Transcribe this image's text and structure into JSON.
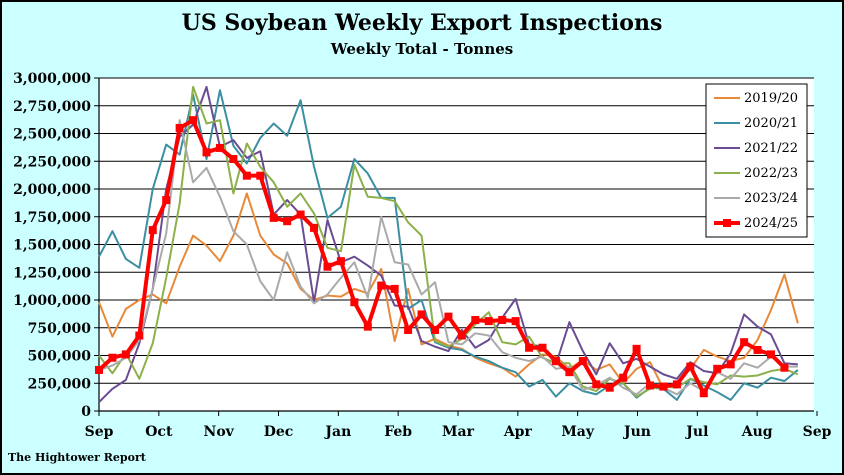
{
  "header": {
    "title": "US Soybean Weekly Export Inspections",
    "subtitle": "Weekly Total - Tonnes"
  },
  "footer": {
    "source": "The Hightower Report"
  },
  "chart_data": {
    "type": "line",
    "title": "US Soybean Weekly Export Inspections",
    "subtitle": "Weekly Total - Tonnes",
    "xlabel": "",
    "ylabel": "",
    "ylim": [
      0,
      3000000
    ],
    "y_ticks": [
      0,
      250000,
      500000,
      750000,
      1000000,
      1250000,
      1500000,
      1750000,
      2000000,
      2250000,
      2500000,
      2750000,
      3000000
    ],
    "y_tick_labels": [
      "0",
      "250,000",
      "500,000",
      "750,000",
      "1,000,000",
      "1,250,000",
      "1,500,000",
      "1,750,000",
      "2,000,000",
      "2,250,000",
      "2,500,000",
      "2,750,000",
      "3,000,000"
    ],
    "x_tick_labels": [
      "Sep",
      "Oct",
      "Nov",
      "Dec",
      "Jan",
      "Feb",
      "Mar",
      "Apr",
      "May",
      "Jun",
      "Jul",
      "Aug",
      "Sep"
    ],
    "x_unit": "week number from start of marketing year (September)",
    "xlim": [
      0,
      53.2
    ],
    "grid": true,
    "legend_position": "top-right",
    "series": [
      {
        "name": "2019/20",
        "color": "#e8893a",
        "x": [
          0,
          1,
          2,
          3,
          4,
          5,
          6,
          7,
          8,
          9,
          10,
          11,
          12,
          13,
          14,
          15,
          16,
          17,
          18,
          19,
          20,
          21,
          22,
          23,
          24,
          25,
          26,
          27,
          28,
          29,
          30,
          31,
          32,
          33,
          34,
          35,
          36,
          37,
          38,
          39,
          40,
          41,
          42,
          43,
          44,
          45,
          46,
          47,
          48,
          49,
          50,
          51,
          52
        ],
        "values": [
          980000,
          670000,
          920000,
          1000000,
          1050000,
          970000,
          1300000,
          1580000,
          1490000,
          1350000,
          1580000,
          1960000,
          1580000,
          1410000,
          1330000,
          1100000,
          1000000,
          1040000,
          1030000,
          1100000,
          1060000,
          1280000,
          630000,
          1100000,
          600000,
          650000,
          590000,
          560000,
          480000,
          430000,
          390000,
          310000,
          420000,
          510000,
          490000,
          380000,
          460000,
          370000,
          420000,
          250000,
          380000,
          440000,
          200000,
          250000,
          380000,
          550000,
          490000,
          450000,
          480000,
          640000,
          910000,
          1230000,
          790000
        ]
      },
      {
        "name": "2020/21",
        "color": "#3a8fa3",
        "x": [
          0,
          1,
          2,
          3,
          4,
          5,
          6,
          7,
          8,
          9,
          10,
          11,
          12,
          13,
          14,
          15,
          16,
          17,
          18,
          19,
          20,
          21,
          22,
          23,
          24,
          25,
          26,
          27,
          28,
          29,
          30,
          31,
          32,
          33,
          34,
          35,
          36,
          37,
          38,
          39,
          40,
          41,
          42,
          43,
          44,
          45,
          46,
          47,
          48,
          49,
          50,
          51,
          52
        ],
        "values": [
          1390000,
          1620000,
          1370000,
          1290000,
          2000000,
          2400000,
          2310000,
          2850000,
          2270000,
          2890000,
          2390000,
          2230000,
          2460000,
          2590000,
          2480000,
          2800000,
          2200000,
          1740000,
          1840000,
          2270000,
          2140000,
          1920000,
          1920000,
          920000,
          1000000,
          620000,
          570000,
          550000,
          490000,
          450000,
          390000,
          350000,
          220000,
          280000,
          130000,
          250000,
          180000,
          150000,
          230000,
          250000,
          120000,
          210000,
          200000,
          100000,
          290000,
          230000,
          170000,
          100000,
          250000,
          210000,
          300000,
          270000,
          370000
        ]
      },
      {
        "name": "2021/22",
        "color": "#6a4c93",
        "x": [
          0,
          1,
          2,
          3,
          4,
          5,
          6,
          7,
          8,
          9,
          10,
          11,
          12,
          13,
          14,
          15,
          16,
          17,
          18,
          19,
          20,
          21,
          22,
          23,
          24,
          25,
          26,
          27,
          28,
          29,
          30,
          31,
          32,
          33,
          34,
          35,
          36,
          37,
          38,
          39,
          40,
          41,
          42,
          43,
          44,
          45,
          46,
          47,
          48,
          49,
          50,
          51,
          52
        ],
        "values": [
          80000,
          200000,
          280000,
          610000,
          1100000,
          2000000,
          2470000,
          2580000,
          2920000,
          2380000,
          2440000,
          2280000,
          2340000,
          1770000,
          1900000,
          1770000,
          980000,
          1720000,
          1340000,
          1390000,
          1310000,
          1220000,
          950000,
          940000,
          630000,
          580000,
          540000,
          730000,
          570000,
          640000,
          840000,
          1010000,
          600000,
          580000,
          420000,
          800000,
          540000,
          330000,
          610000,
          430000,
          470000,
          400000,
          330000,
          290000,
          440000,
          360000,
          340000,
          520000,
          870000,
          760000,
          690000,
          430000,
          420000
        ]
      },
      {
        "name": "2022/23",
        "color": "#8cb04a",
        "x": [
          0,
          1,
          2,
          3,
          4,
          5,
          6,
          7,
          8,
          9,
          10,
          11,
          12,
          13,
          14,
          15,
          16,
          17,
          18,
          19,
          20,
          21,
          22,
          23,
          24,
          25,
          26,
          27,
          28,
          29,
          30,
          31,
          32,
          33,
          34,
          35,
          36,
          37,
          38,
          39,
          40,
          41,
          42,
          43,
          44,
          45,
          46,
          47,
          48,
          49,
          50,
          51,
          52
        ],
        "values": [
          500000,
          340000,
          520000,
          290000,
          610000,
          1200000,
          1870000,
          2920000,
          2590000,
          2620000,
          1960000,
          2410000,
          2200000,
          2060000,
          1840000,
          1960000,
          1780000,
          1470000,
          1440000,
          2220000,
          1930000,
          1920000,
          1890000,
          1700000,
          1580000,
          630000,
          580000,
          650000,
          780000,
          890000,
          620000,
          600000,
          670000,
          480000,
          430000,
          430000,
          220000,
          180000,
          290000,
          250000,
          130000,
          200000,
          220000,
          210000,
          290000,
          260000,
          240000,
          320000,
          310000,
          320000,
          360000,
          380000,
          330000
        ]
      },
      {
        "name": "2023/24",
        "color": "#aaaaaa",
        "x": [
          0,
          1,
          2,
          3,
          4,
          5,
          6,
          7,
          8,
          9,
          10,
          11,
          12,
          13,
          14,
          15,
          16,
          17,
          18,
          19,
          20,
          21,
          22,
          23,
          24,
          25,
          26,
          27,
          28,
          29,
          30,
          31,
          32,
          33,
          34,
          35,
          36,
          37,
          38,
          39,
          40,
          41,
          42,
          43,
          44,
          45,
          46,
          47,
          48,
          49,
          50,
          51,
          52
        ],
        "values": [
          370000,
          410000,
          480000,
          640000,
          1100000,
          1600000,
          2620000,
          2060000,
          2190000,
          1930000,
          1620000,
          1500000,
          1170000,
          1000000,
          1430000,
          1120000,
          970000,
          1050000,
          1200000,
          1340000,
          1020000,
          1750000,
          1340000,
          1320000,
          1050000,
          1160000,
          620000,
          600000,
          700000,
          680000,
          530000,
          480000,
          450000,
          490000,
          380000,
          400000,
          190000,
          230000,
          300000,
          210000,
          150000,
          250000,
          210000,
          150000,
          250000,
          180000,
          350000,
          290000,
          430000,
          390000,
          490000,
          400000,
          400000
        ]
      },
      {
        "name": "2024/25",
        "color": "#ff0000",
        "x": [
          0,
          1,
          2,
          3,
          4,
          5,
          6,
          7,
          8,
          9,
          10,
          11,
          12,
          13,
          14,
          15,
          16,
          17,
          18,
          19,
          20,
          21,
          22,
          23,
          24,
          25,
          26,
          27,
          28,
          29,
          30,
          31,
          32,
          33,
          34,
          35,
          36,
          37,
          38,
          39,
          40,
          41,
          42,
          43,
          44,
          45,
          46,
          47,
          48,
          49,
          50,
          51
        ],
        "values": [
          370000,
          480000,
          510000,
          680000,
          1630000,
          1900000,
          2550000,
          2620000,
          2330000,
          2370000,
          2270000,
          2120000,
          2120000,
          1740000,
          1710000,
          1770000,
          1650000,
          1300000,
          1350000,
          980000,
          760000,
          1130000,
          1100000,
          730000,
          870000,
          730000,
          850000,
          680000,
          820000,
          810000,
          820000,
          810000,
          570000,
          570000,
          450000,
          350000,
          450000,
          240000,
          210000,
          300000,
          560000,
          230000,
          220000,
          240000,
          400000,
          160000,
          380000,
          420000,
          620000,
          550000,
          510000,
          390000
        ]
      }
    ]
  }
}
